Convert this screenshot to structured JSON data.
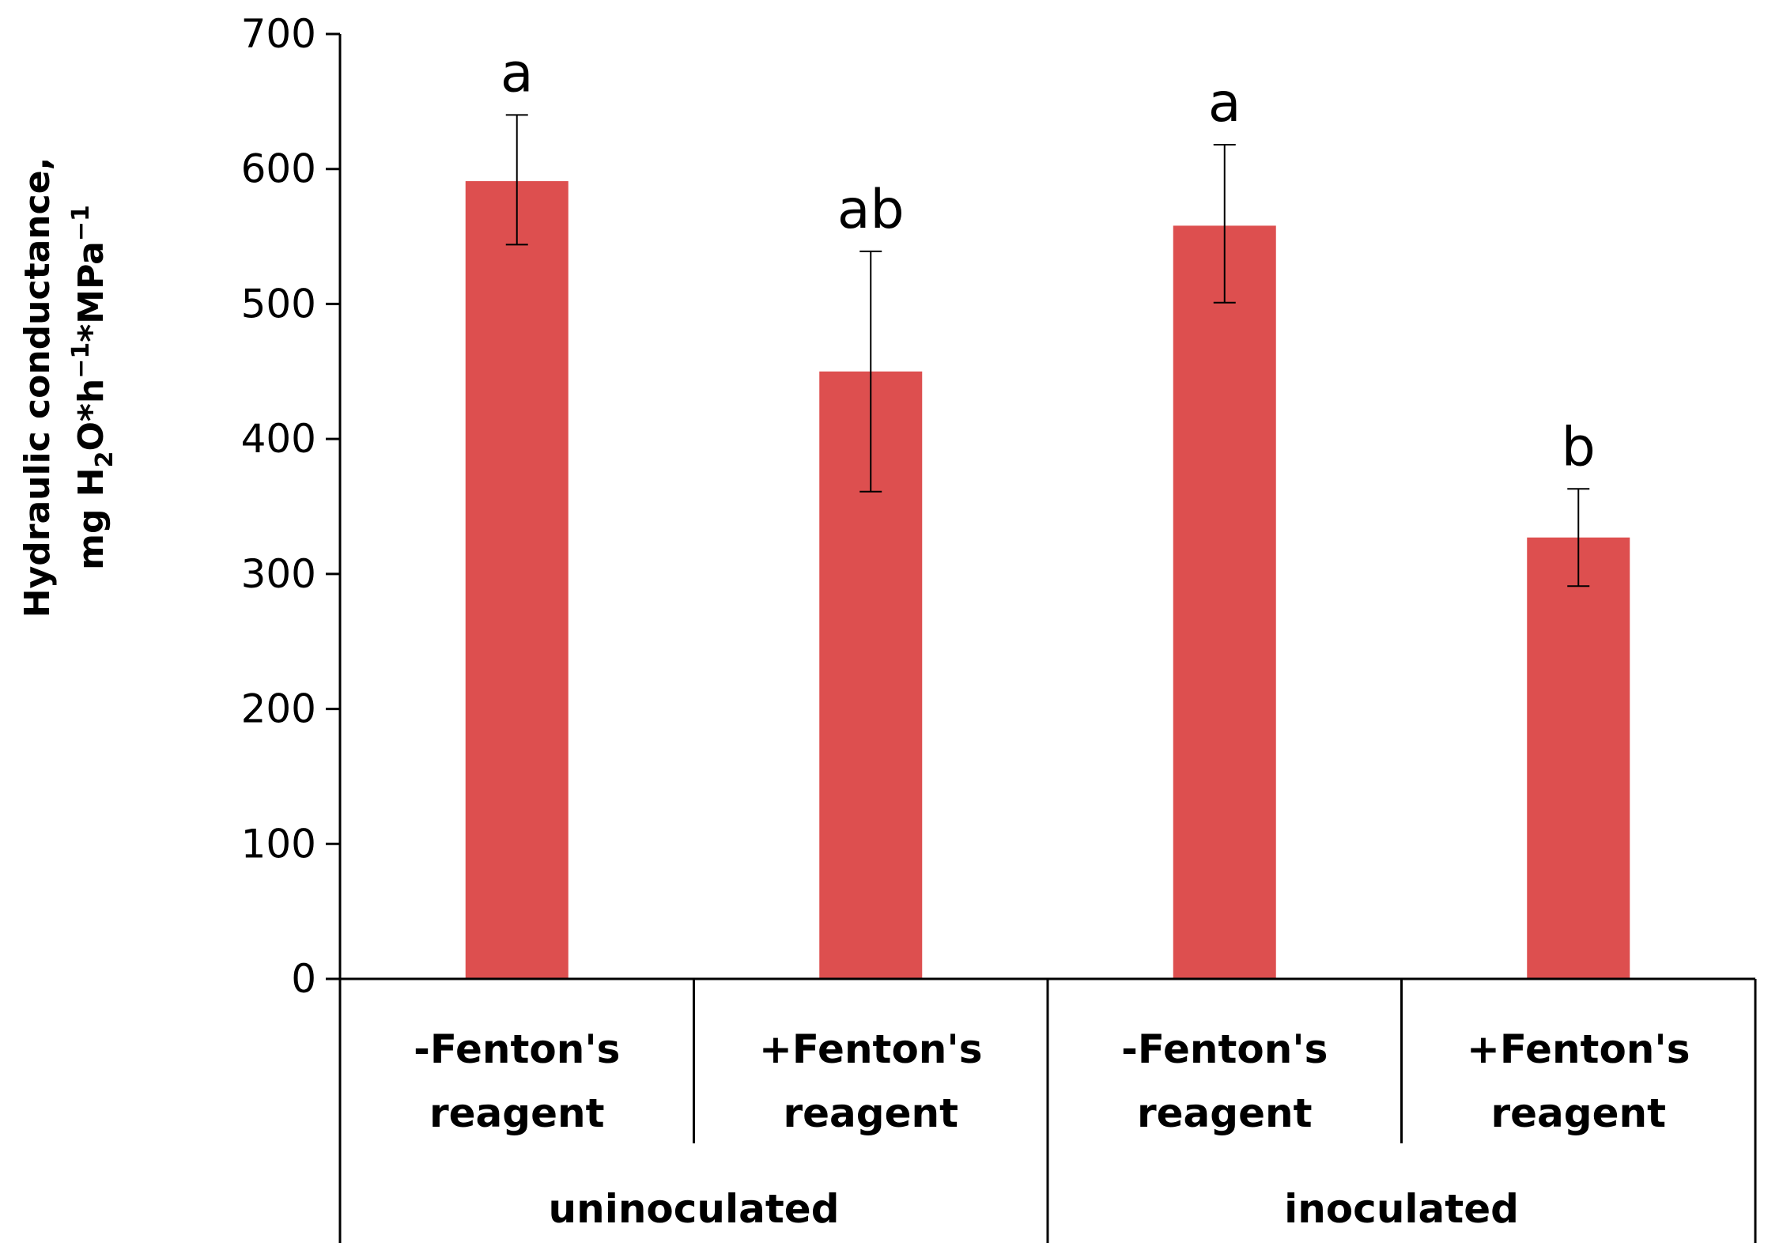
{
  "chart_data": {
    "type": "bar",
    "title": "",
    "xlabel": "",
    "ylabel_line1": "Hydraulic conductance,",
    "ylabel_line2": {
      "prefix": "mg H",
      "sub": "2",
      "mid1": "O*h",
      "sup1": "−1",
      "mid2": "*MPa",
      "sup2": "−1"
    },
    "ylim": [
      0,
      700
    ],
    "yticks": [
      0,
      100,
      200,
      300,
      400,
      500,
      600,
      700
    ],
    "grid": false,
    "legend": "none",
    "bar_color": "#dd4f4f",
    "categories": [
      {
        "line1": "-Fenton's",
        "line2": "reagent"
      },
      {
        "line1": "+Fenton's",
        "line2": "reagent"
      },
      {
        "line1": "-Fenton's",
        "line2": "reagent"
      },
      {
        "line1": "+Fenton's",
        "line2": "reagent"
      }
    ],
    "groups": [
      {
        "label": "uninoculated",
        "span": [
          0,
          1
        ]
      },
      {
        "label": "inoculated",
        "span": [
          2,
          3
        ]
      }
    ],
    "values": [
      591,
      450,
      558,
      327
    ],
    "errors": [
      {
        "low": 544,
        "high": 640
      },
      {
        "low": 361,
        "high": 539
      },
      {
        "low": 501,
        "high": 618
      },
      {
        "low": 291,
        "high": 363
      }
    ],
    "significance_letters": [
      "a",
      "ab",
      "a",
      "b"
    ]
  }
}
